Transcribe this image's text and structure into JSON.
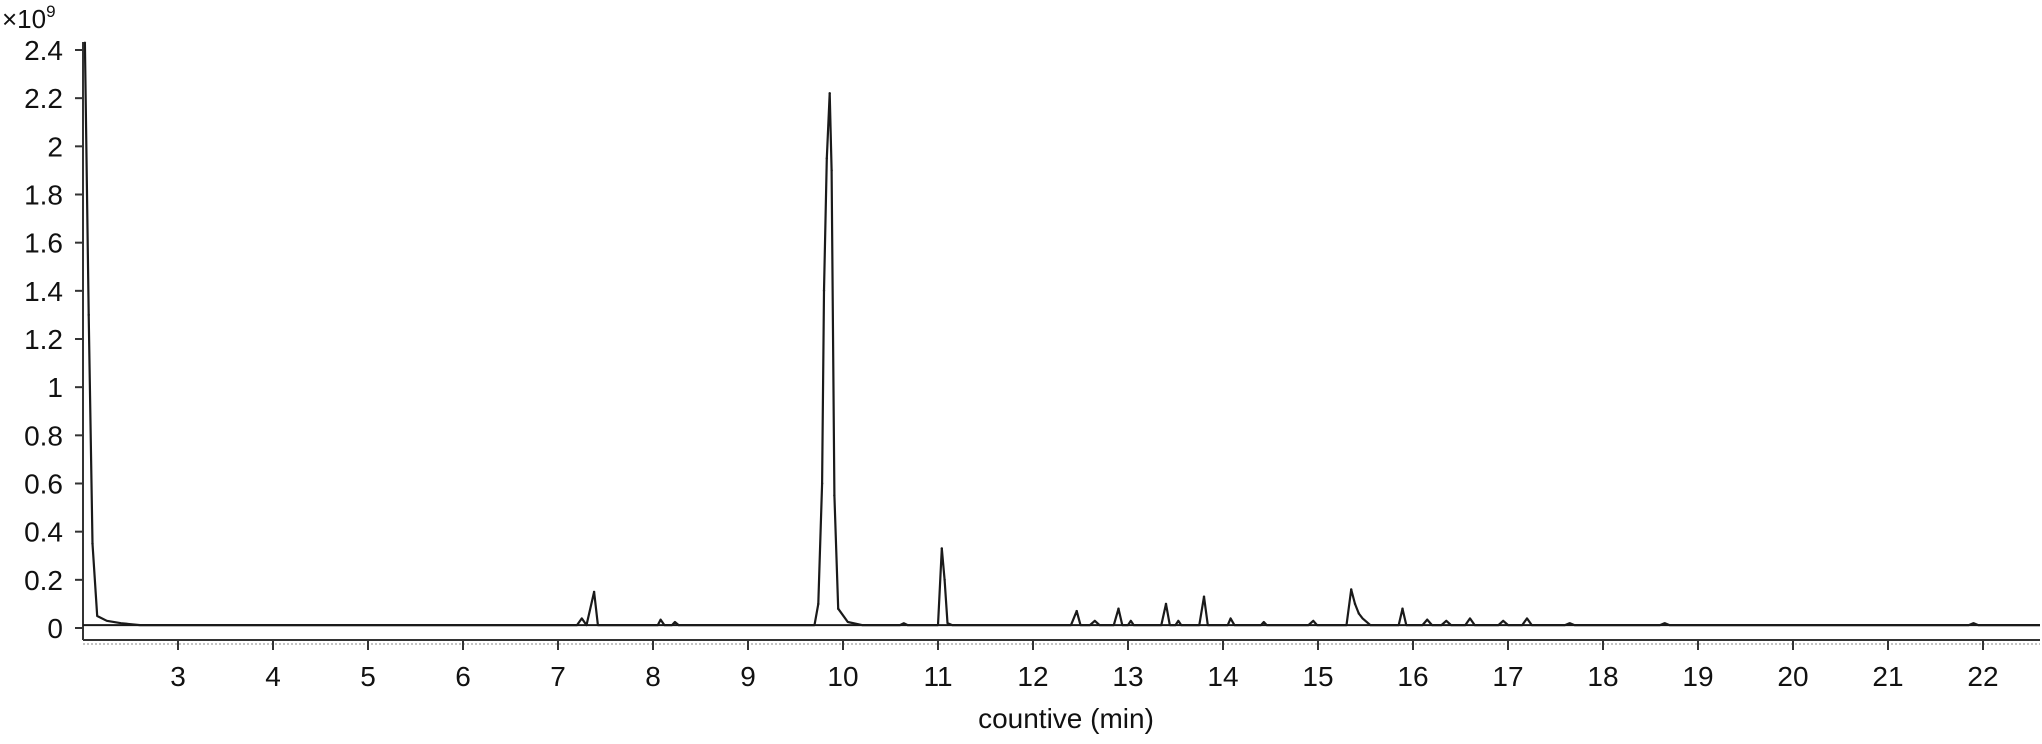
{
  "chart_data": {
    "type": "line",
    "title": "",
    "xlabel": "countive (min)",
    "ylabel": "",
    "y_multiplier": {
      "base": "×10",
      "exponent": "9"
    },
    "xlim": [
      2.0,
      22.6
    ],
    "ylim": [
      0,
      2.4
    ],
    "x_ticks": [
      "3",
      "4",
      "5",
      "6",
      "7",
      "8",
      "9",
      "10",
      "11",
      "12",
      "13",
      "14",
      "15",
      "16",
      "17",
      "18",
      "19",
      "20",
      "21",
      "22"
    ],
    "y_ticks": [
      "0",
      "0.2",
      "0.4",
      "0.6",
      "0.8",
      "1",
      "1.2",
      "1.4",
      "1.6",
      "1.8",
      "2",
      "2.2",
      "2.4"
    ],
    "grid": false,
    "legend": "none",
    "line_color": "#1a1a1a",
    "baseline": 0.012,
    "series": [
      {
        "points": [
          [
            2.02,
            2.43
          ],
          [
            2.06,
            1.3
          ],
          [
            2.1,
            0.35
          ],
          [
            2.15,
            0.05
          ],
          [
            2.25,
            0.03
          ],
          [
            2.4,
            0.02
          ],
          [
            2.6,
            0.012
          ],
          [
            7.2,
            0.012
          ],
          [
            7.25,
            0.04
          ],
          [
            7.3,
            0.012
          ],
          [
            7.38,
            0.15
          ],
          [
            7.42,
            0.012
          ],
          [
            8.05,
            0.012
          ],
          [
            8.08,
            0.035
          ],
          [
            8.12,
            0.012
          ],
          [
            8.2,
            0.012
          ],
          [
            8.23,
            0.025
          ],
          [
            8.27,
            0.012
          ],
          [
            9.7,
            0.012
          ],
          [
            9.74,
            0.1
          ],
          [
            9.78,
            0.6
          ],
          [
            9.8,
            1.4
          ],
          [
            9.83,
            1.95
          ],
          [
            9.86,
            2.22
          ],
          [
            9.88,
            1.9
          ],
          [
            9.91,
            0.55
          ],
          [
            9.95,
            0.08
          ],
          [
            10.05,
            0.025
          ],
          [
            10.2,
            0.012
          ],
          [
            10.6,
            0.012
          ],
          [
            10.64,
            0.02
          ],
          [
            10.68,
            0.012
          ],
          [
            11.0,
            0.012
          ],
          [
            11.04,
            0.33
          ],
          [
            11.07,
            0.2
          ],
          [
            11.1,
            0.02
          ],
          [
            11.15,
            0.012
          ],
          [
            12.4,
            0.012
          ],
          [
            12.46,
            0.07
          ],
          [
            12.5,
            0.012
          ],
          [
            12.6,
            0.012
          ],
          [
            12.65,
            0.03
          ],
          [
            12.7,
            0.012
          ],
          [
            12.85,
            0.012
          ],
          [
            12.9,
            0.08
          ],
          [
            12.94,
            0.012
          ],
          [
            13.0,
            0.012
          ],
          [
            13.03,
            0.03
          ],
          [
            13.06,
            0.012
          ],
          [
            13.35,
            0.012
          ],
          [
            13.4,
            0.1
          ],
          [
            13.44,
            0.012
          ],
          [
            13.5,
            0.012
          ],
          [
            13.53,
            0.03
          ],
          [
            13.56,
            0.012
          ],
          [
            13.75,
            0.012
          ],
          [
            13.8,
            0.13
          ],
          [
            13.84,
            0.012
          ],
          [
            14.05,
            0.012
          ],
          [
            14.08,
            0.04
          ],
          [
            14.12,
            0.012
          ],
          [
            14.4,
            0.012
          ],
          [
            14.43,
            0.025
          ],
          [
            14.46,
            0.012
          ],
          [
            14.9,
            0.012
          ],
          [
            14.95,
            0.03
          ],
          [
            14.99,
            0.012
          ],
          [
            15.3,
            0.012
          ],
          [
            15.35,
            0.16
          ],
          [
            15.39,
            0.1
          ],
          [
            15.43,
            0.06
          ],
          [
            15.47,
            0.04
          ],
          [
            15.55,
            0.012
          ],
          [
            15.85,
            0.012
          ],
          [
            15.89,
            0.08
          ],
          [
            15.93,
            0.012
          ],
          [
            16.1,
            0.012
          ],
          [
            16.15,
            0.035
          ],
          [
            16.2,
            0.012
          ],
          [
            16.3,
            0.012
          ],
          [
            16.35,
            0.03
          ],
          [
            16.4,
            0.012
          ],
          [
            16.55,
            0.012
          ],
          [
            16.6,
            0.04
          ],
          [
            16.65,
            0.012
          ],
          [
            16.9,
            0.012
          ],
          [
            16.95,
            0.03
          ],
          [
            17.0,
            0.012
          ],
          [
            17.15,
            0.012
          ],
          [
            17.2,
            0.04
          ],
          [
            17.25,
            0.012
          ],
          [
            17.6,
            0.012
          ],
          [
            17.65,
            0.02
          ],
          [
            17.7,
            0.012
          ],
          [
            18.6,
            0.012
          ],
          [
            18.65,
            0.02
          ],
          [
            18.7,
            0.012
          ],
          [
            21.85,
            0.012
          ],
          [
            21.9,
            0.02
          ],
          [
            21.95,
            0.012
          ],
          [
            22.6,
            0.012
          ]
        ]
      }
    ]
  }
}
